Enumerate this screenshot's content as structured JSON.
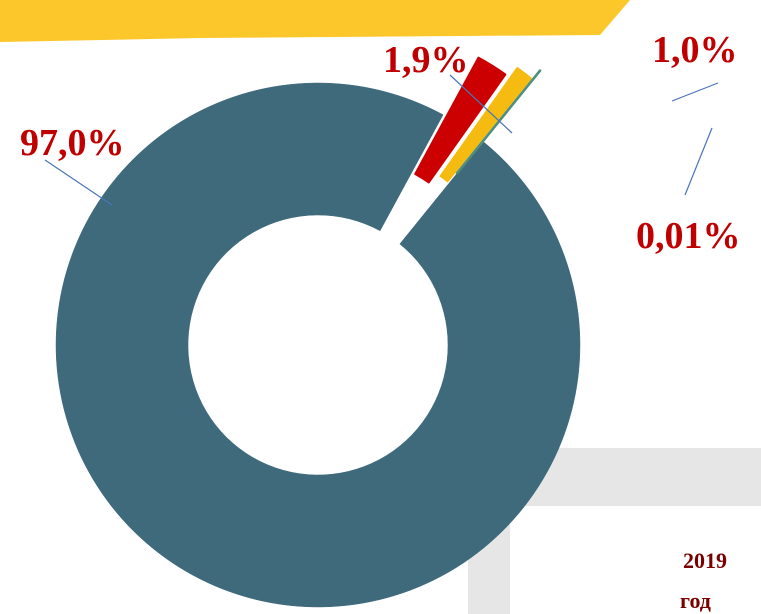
{
  "chart_data": {
    "type": "donut",
    "categories": [
      null,
      null,
      null,
      null
    ],
    "values": [
      97.0,
      1.9,
      1.0,
      0.01
    ],
    "value_labels": [
      "97,0%",
      "1,9%",
      "1,0%",
      "0,01%"
    ],
    "colors": [
      "#3e6a7b",
      "#cc0000",
      "#f6bb11",
      "#4f8f7f"
    ],
    "annotations": [
      "2019",
      "год"
    ]
  }
}
